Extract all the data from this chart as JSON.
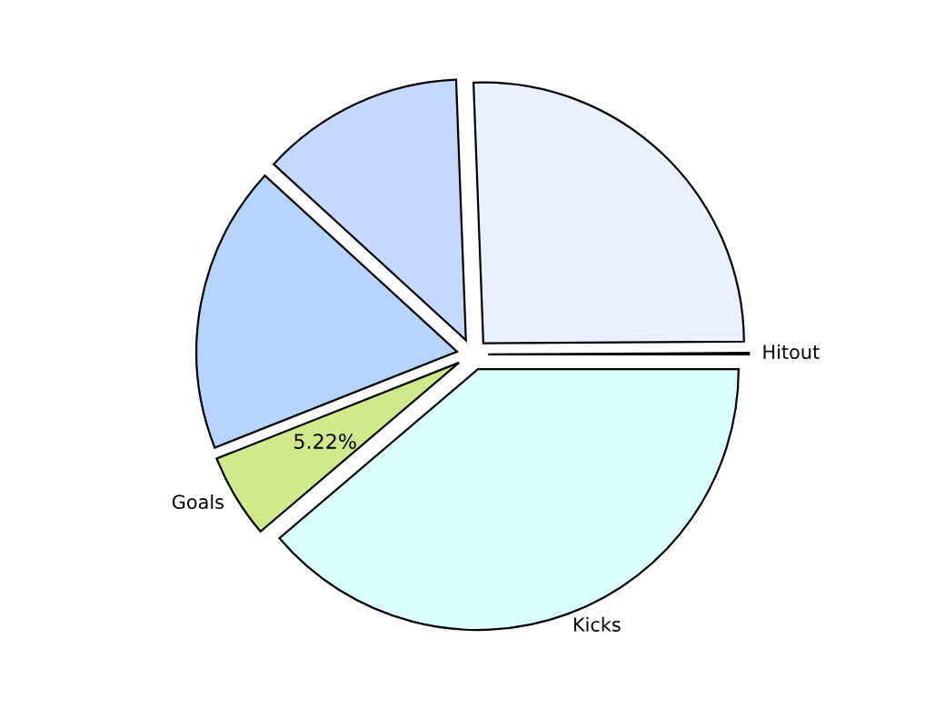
{
  "chart_data": {
    "type": "pie",
    "categories": [
      "Hitout",
      null,
      null,
      null,
      "Goals",
      "Kicks"
    ],
    "values": [
      0.1,
      25.5,
      12.6,
      17.8,
      5.22,
      38.78
    ],
    "colors": [
      "#e0e0e0",
      "#eaf0ff",
      "#c5d8ff",
      "#b5d5ff",
      "#cfe98c",
      "#d9ffff"
    ],
    "value_labels": [
      null,
      null,
      null,
      null,
      "5.22%",
      null
    ],
    "legend": false
  }
}
